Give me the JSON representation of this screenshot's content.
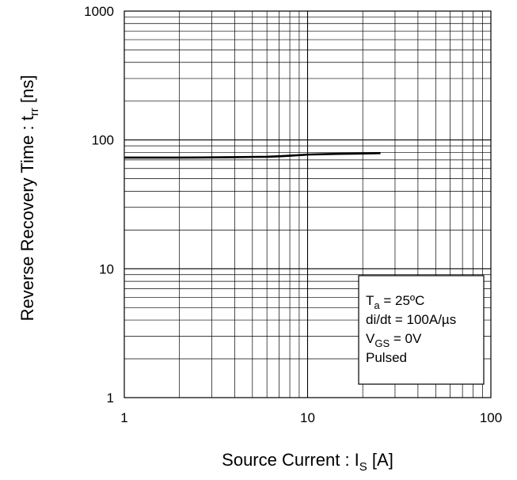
{
  "chart_data": {
    "type": "line",
    "x_scale": "log",
    "y_scale": "log",
    "xlim": [
      1,
      100
    ],
    "ylim": [
      1,
      1000
    ],
    "x_ticks": [
      "1",
      "10",
      "100"
    ],
    "y_ticks": [
      "1",
      "10",
      "100",
      "1000"
    ],
    "xlabel": {
      "text": "Source Current : I",
      "sub": "S",
      "suffix": " [A]"
    },
    "ylabel": {
      "text": "Reverse Recovery Time : t",
      "sub": "rr",
      "suffix": " [ns]"
    },
    "grid": true,
    "series": [
      {
        "color": "#000000",
        "x": [
          1,
          2,
          3,
          4,
          5,
          6,
          7,
          8,
          9,
          10,
          12,
          15,
          20,
          25
        ],
        "y": [
          73,
          73,
          73.2,
          73.5,
          73.8,
          74,
          74.7,
          75.5,
          76.2,
          77,
          77.5,
          78,
          78.5,
          79
        ]
      }
    ],
    "annotation": {
      "position": "bottom-right",
      "lines": [
        {
          "text": "T",
          "sub": "a",
          "suffix": " = 25ºC"
        },
        {
          "text": "di/dt = 100A/µs",
          "sub": "",
          "suffix": ""
        },
        {
          "text": "V",
          "sub": "GS",
          "suffix": " = 0V"
        },
        {
          "text": "Pulsed",
          "sub": "",
          "suffix": ""
        }
      ]
    }
  }
}
